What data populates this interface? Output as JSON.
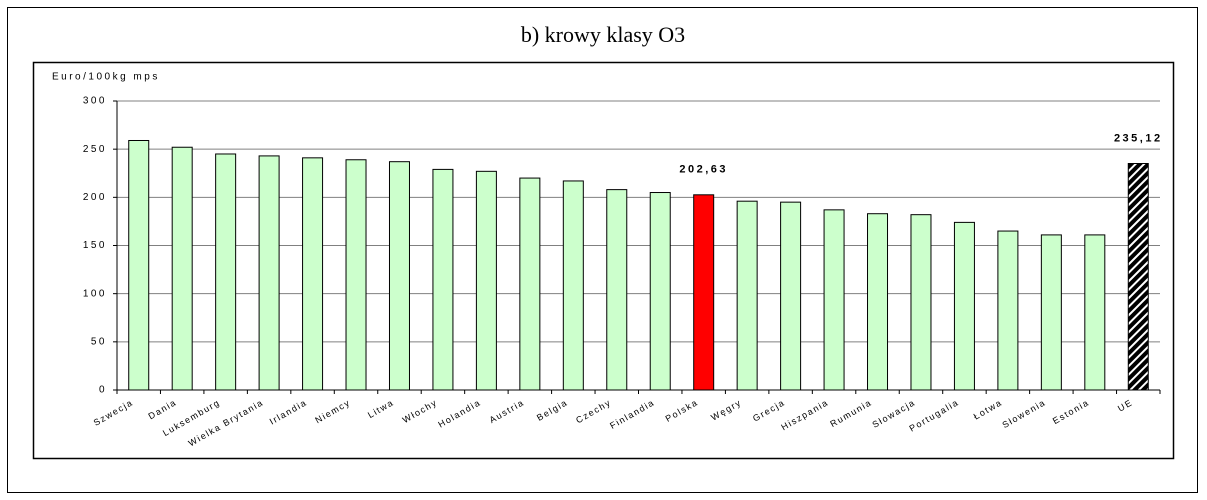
{
  "chart_data": {
    "type": "bar",
    "title": "b) krowy klasy O3",
    "y_label": "Euro/100kg mps",
    "categories": [
      "Szwecja",
      "Dania",
      "Luksemburg",
      "Wielka Brytania",
      "Irlandia",
      "Niemcy",
      "Litwa",
      "Włochy",
      "Holandia",
      "Austria",
      "Belgia",
      "Czechy",
      "Finlandia",
      "Polska",
      "Węgry",
      "Grecja",
      "Hiszpania",
      "Rumunia",
      "Słowacja",
      "Portugalia",
      "Łotwa",
      "Słowenia",
      "Estonia",
      "UE"
    ],
    "values": [
      259,
      252,
      245,
      243,
      241,
      239,
      237,
      229,
      227,
      220,
      217,
      208,
      205,
      202.63,
      196,
      195,
      187,
      183,
      182,
      174,
      165,
      161,
      161,
      235.12
    ],
    "value_labels": [
      null,
      null,
      null,
      null,
      null,
      null,
      null,
      null,
      null,
      null,
      null,
      null,
      null,
      "202,63",
      null,
      null,
      null,
      null,
      null,
      null,
      null,
      null,
      null,
      "235,12"
    ],
    "colors": [
      "#ccffcc",
      "#ccffcc",
      "#ccffcc",
      "#ccffcc",
      "#ccffcc",
      "#ccffcc",
      "#ccffcc",
      "#ccffcc",
      "#ccffcc",
      "#ccffcc",
      "#ccffcc",
      "#ccffcc",
      "#ccffcc",
      "#ff0000",
      "#ccffcc",
      "#ccffcc",
      "#ccffcc",
      "#ccffcc",
      "#ccffcc",
      "#ccffcc",
      "#ccffcc",
      "#ccffcc",
      "#ccffcc",
      "#000000"
    ],
    "hatched": [
      false,
      false,
      false,
      false,
      false,
      false,
      false,
      false,
      false,
      false,
      false,
      false,
      false,
      false,
      false,
      false,
      false,
      false,
      false,
      false,
      false,
      false,
      false,
      true
    ],
    "ylim": [
      0,
      300
    ],
    "yticks": [
      0,
      50,
      100,
      150,
      200,
      250,
      300
    ],
    "grid": true
  }
}
